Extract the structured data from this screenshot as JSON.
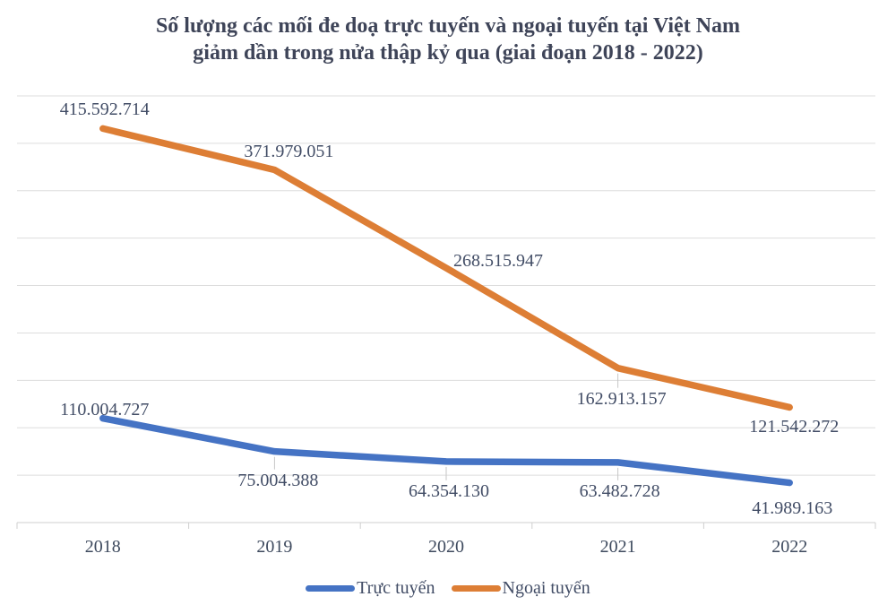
{
  "title": {
    "line1": "Số lượng các mối đe doạ trực tuyến và ngoại tuyến tại Việt Nam",
    "line2": "giảm dần trong nửa thập kỷ qua (giai đoạn 2018 - 2022)"
  },
  "chart_data": {
    "type": "line",
    "categories": [
      "2018",
      "2019",
      "2020",
      "2021",
      "2022"
    ],
    "series": [
      {
        "name": "Trực tuyến",
        "color": "#4573C4",
        "values": [
          110004727,
          75004388,
          64354130,
          63482728,
          41989163
        ],
        "labels": [
          "110.004.727",
          "75.004.388",
          "64.354.130",
          "63.482.728",
          "41.989.163"
        ],
        "label_offsets": [
          [
            2,
            -10
          ],
          [
            4,
            32
          ],
          [
            3,
            33
          ],
          [
            2,
            32
          ],
          [
            3,
            28
          ]
        ],
        "label_leaders": [
          false,
          true,
          true,
          true,
          false
        ]
      },
      {
        "name": "Ngoại tuyến",
        "color": "#DD7E35",
        "values": [
          415592714,
          371979051,
          268515947,
          162913157,
          121542272
        ],
        "labels": [
          "415.592.714",
          "371.979.051",
          "268.515.947",
          "162.913.157",
          "121.542.272"
        ],
        "label_offsets": [
          [
            2,
            -21
          ],
          [
            16,
            -21
          ],
          [
            58,
            -8
          ],
          [
            4,
            34
          ],
          [
            5,
            22
          ]
        ],
        "label_leaders": [
          false,
          false,
          false,
          true,
          false
        ]
      }
    ],
    "ylim": [
      0,
      450000000
    ],
    "grid_step": 50000000,
    "grid": true,
    "legend_position": "bottom",
    "xlabel": "",
    "ylabel": ""
  },
  "legend": {
    "items": [
      {
        "label": "Trực tuyến",
        "color": "#4573C4"
      },
      {
        "label": "Ngoại tuyến",
        "color": "#DD7E35"
      }
    ]
  },
  "colors": {
    "title_text": "#3E4458",
    "label_text": "#424D66",
    "gridline": "#DDDDDD",
    "axis": "#CFCFCF",
    "leader": "#C6C6C6",
    "background": "#FFFFFF"
  }
}
